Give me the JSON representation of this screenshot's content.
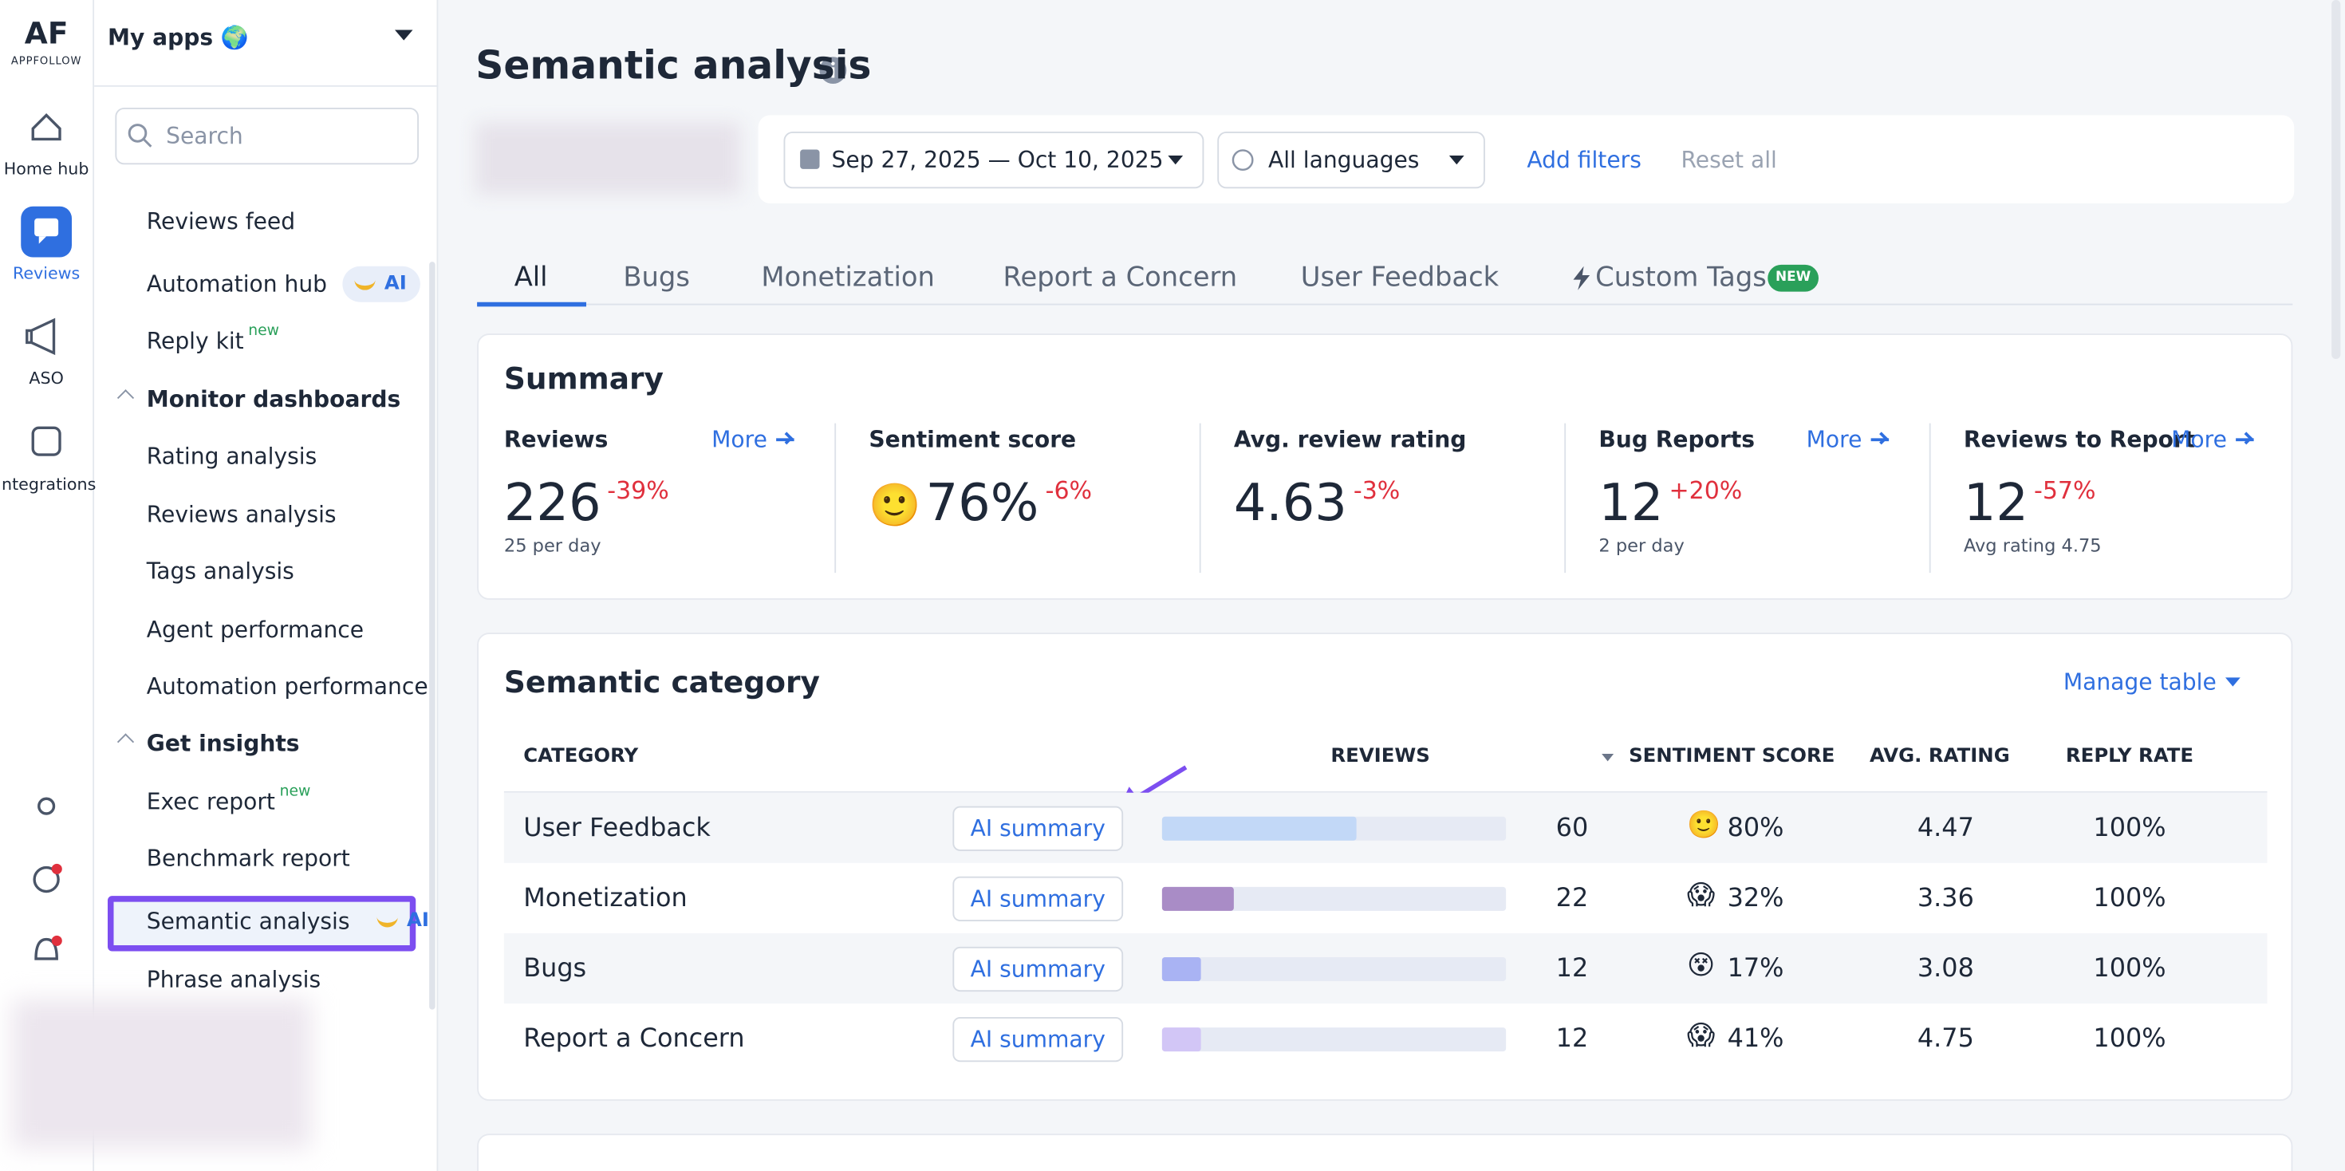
{
  "brand": {
    "logo": "AF",
    "name": "APPFOLLOW"
  },
  "rail": [
    "Home hub",
    "Reviews",
    "ASO",
    "Integrations"
  ],
  "app_selector": "My apps 🌍",
  "search_placeholder": "Search",
  "nav": [
    {
      "label": "Reviews feed"
    },
    {
      "label": "Automation hub",
      "badge": "AI"
    },
    {
      "label": "Reply kit",
      "sup": "new"
    },
    {
      "label": "Monitor dashboards",
      "group": true
    },
    {
      "label": "Rating analysis"
    },
    {
      "label": "Reviews analysis"
    },
    {
      "label": "Tags analysis"
    },
    {
      "label": "Agent performance"
    },
    {
      "label": "Automation performance"
    },
    {
      "label": "Get insights",
      "group": true
    },
    {
      "label": "Exec report",
      "sup": "new"
    },
    {
      "label": "Benchmark report"
    },
    {
      "label": "Semantic analysis",
      "badge": "AI",
      "active": true
    },
    {
      "label": "Phrase analysis"
    }
  ],
  "header": {
    "title": "Semantic analysis"
  },
  "filters": {
    "date_range": "Sep 27, 2025 — Oct 10, 2025",
    "language": "All languages",
    "add": "Add filters",
    "reset": "Reset all"
  },
  "tabs": [
    "All",
    "Bugs",
    "Monetization",
    "Report a Concern",
    "User Feedback",
    "Custom Tags"
  ],
  "tab_badge": "NEW",
  "summary": {
    "title": "Summary",
    "cards": [
      {
        "label": "Reviews",
        "link": "More",
        "value": "226",
        "change": "-39%",
        "sub": "25 per day"
      },
      {
        "label": "Sentiment score",
        "icon": "🙂",
        "value": "76%",
        "change": "-6%"
      },
      {
        "label": "Avg. review rating",
        "value": "4.63",
        "change": "-3%"
      },
      {
        "label": "Bug Reports",
        "link": "More",
        "value": "12",
        "change": "+20%",
        "sub": "2 per day"
      },
      {
        "label": "Reviews to Report",
        "link": "More",
        "value": "12",
        "change": "-57%",
        "sub": "Avg rating 4.75"
      }
    ]
  },
  "table": {
    "title": "Semantic category",
    "manage": "Manage table",
    "columns": [
      "CATEGORY",
      "REVIEWS",
      "SENTIMENT SCORE",
      "AVG. RATING",
      "REPLY RATE"
    ],
    "rows": [
      {
        "category": "User Feedback",
        "action": "AI summary",
        "reviews": 60,
        "color": "#c2d8f7",
        "icon": "🙂",
        "sentiment": "80%",
        "rating": "4.47",
        "reply": "100%"
      },
      {
        "category": "Monetization",
        "action": "AI summary",
        "reviews": 22,
        "color": "#a98cc6",
        "icon": "😱",
        "sentiment": "32%",
        "rating": "3.36",
        "reply": "100%"
      },
      {
        "category": "Bugs",
        "action": "AI summary",
        "reviews": 12,
        "color": "#a9b3f3",
        "icon": "😵",
        "sentiment": "17%",
        "rating": "3.08",
        "reply": "100%"
      },
      {
        "category": "Report a Concern",
        "action": "AI summary",
        "reviews": 12,
        "color": "#d2c6f6",
        "icon": "😱",
        "sentiment": "41%",
        "rating": "4.75",
        "reply": "100%"
      }
    ]
  }
}
